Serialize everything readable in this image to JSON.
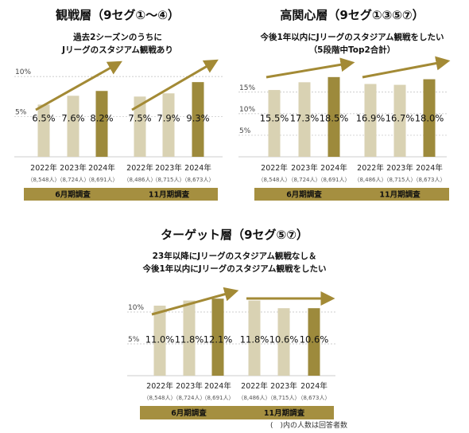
{
  "note": "(　)内の人数は回答者数",
  "colors": {
    "light": "#d9d2b3",
    "dark": "#9d8a3c",
    "arrow": "#a38a35",
    "band": "#a58f40",
    "grid": "#bdbdbd"
  },
  "chart_data": [
    {
      "type": "bar",
      "title": "観戦層（9セグ①～④）",
      "subtitle": [
        "過去2シーズンのうちに",
        "Jリーグのスタジアム観戦あり"
      ],
      "ylim": [
        0,
        11
      ],
      "yticks": [
        {
          "value": 5,
          "label": "5%"
        },
        {
          "value": 10,
          "label": "10%"
        }
      ],
      "groups": [
        {
          "label": "6月期調査",
          "bars": [
            {
              "year": "2022年",
              "n": "（8,548人）",
              "value": 6.5,
              "label": "6.5%",
              "highlight": false
            },
            {
              "year": "2023年",
              "n": "（8,724人）",
              "value": 7.6,
              "label": "7.6%",
              "highlight": false
            },
            {
              "year": "2024年",
              "n": "（8,691人）",
              "value": 8.2,
              "label": "8.2%",
              "highlight": true
            }
          ]
        },
        {
          "label": "11月期調査",
          "bars": [
            {
              "year": "2022年",
              "n": "（8,486人）",
              "value": 7.5,
              "label": "7.5%",
              "highlight": false
            },
            {
              "year": "2023年",
              "n": "（8,715人）",
              "value": 7.9,
              "label": "7.9%",
              "highlight": false
            },
            {
              "year": "2024年",
              "n": "（8,673人）",
              "value": 9.3,
              "label": "9.3%",
              "highlight": true
            }
          ]
        }
      ],
      "trend_arrow": "up"
    },
    {
      "type": "bar",
      "title": "高関心層（9セグ①③⑤⑦）",
      "subtitle": [
        "今後1年以内にJリーグのスタジアム観戦をしたい",
        "（5段階中Top2合計）"
      ],
      "ylim": [
        0,
        20.5
      ],
      "yticks": [
        {
          "value": 5,
          "label": "5%"
        },
        {
          "value": 10,
          "label": "10%"
        },
        {
          "value": 15,
          "label": "15%"
        }
      ],
      "groups": [
        {
          "label": "6月期調査",
          "bars": [
            {
              "year": "2022年",
              "n": "（8,548人）",
              "value": 15.5,
              "label": "15.5%",
              "highlight": false
            },
            {
              "year": "2023年",
              "n": "（8,724人）",
              "value": 17.3,
              "label": "17.3%",
              "highlight": false
            },
            {
              "year": "2024年",
              "n": "（8,691人）",
              "value": 18.5,
              "label": "18.5%",
              "highlight": true
            }
          ]
        },
        {
          "label": "11月期調査",
          "bars": [
            {
              "year": "2022年",
              "n": "（8,486人）",
              "value": 16.9,
              "label": "16.9%",
              "highlight": false
            },
            {
              "year": "2023年",
              "n": "（8,715人）",
              "value": 16.7,
              "label": "16.7%",
              "highlight": false
            },
            {
              "year": "2024年",
              "n": "（8,673人）",
              "value": 18.0,
              "label": "18.0%",
              "highlight": true
            }
          ]
        }
      ],
      "trend_arrow": "up"
    },
    {
      "type": "bar",
      "title": "ターゲット層（9セグ⑤⑦）",
      "subtitle": [
        "23年以降にJリーグのスタジアム観戦なし＆",
        "今後1年以内にJリーグのスタジアム観戦をしたい"
      ],
      "ylim": [
        0,
        13
      ],
      "yticks": [
        {
          "value": 5,
          "label": "5%"
        },
        {
          "value": 10,
          "label": "10%"
        }
      ],
      "groups": [
        {
          "label": "6月期調査",
          "bars": [
            {
              "year": "2022年",
              "n": "（8,548人）",
              "value": 11.0,
              "label": "11.0%",
              "highlight": false
            },
            {
              "year": "2023年",
              "n": "（8,724人）",
              "value": 11.8,
              "label": "11.8%",
              "highlight": false
            },
            {
              "year": "2024年",
              "n": "（8,691人）",
              "value": 12.1,
              "label": "12.1%",
              "highlight": true
            }
          ]
        },
        {
          "label": "11月期調査",
          "bars": [
            {
              "year": "2022年",
              "n": "（8,486人）",
              "value": 11.8,
              "label": "11.8%",
              "highlight": false
            },
            {
              "year": "2023年",
              "n": "（8,715人）",
              "value": 10.6,
              "label": "10.6%",
              "highlight": false
            },
            {
              "year": "2024年",
              "n": "（8,673人）",
              "value": 10.6,
              "label": "10.6%",
              "highlight": true
            }
          ]
        }
      ],
      "trend_arrow": "flat"
    }
  ]
}
